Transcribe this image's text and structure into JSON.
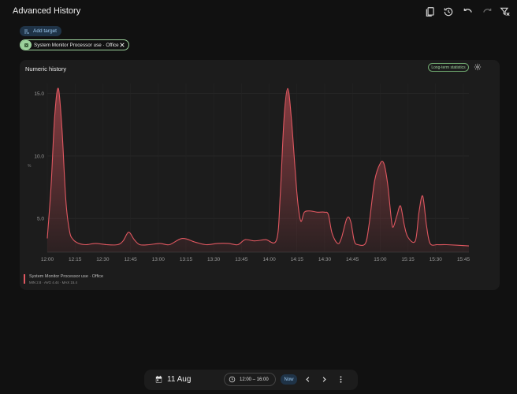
{
  "header": {
    "title": "Advanced History",
    "icons": [
      "bookmark-icon",
      "history-icon",
      "undo-icon",
      "redo-icon",
      "clear-filter-icon"
    ]
  },
  "targets": {
    "add_label": "Add target",
    "chip_label": "System Monitor Processor use · Office"
  },
  "card": {
    "title": "Numeric history",
    "long_term_label": "Long-term statistics",
    "y_unit_label": "%"
  },
  "legend": {
    "name": "System Monitor Processor use · Office",
    "stats": "MIN 2.8 · AVG 4.44 · MAX 15.4"
  },
  "bottom": {
    "date": "11 Aug",
    "range": "12:00 – 16:00",
    "now_label": "Now"
  },
  "colors": {
    "series": "#e05760",
    "accent": "#9cc9f0",
    "chip": "#9bd19b"
  },
  "chart_data": {
    "type": "area",
    "ylim": [
      2.3,
      15.8
    ],
    "yticks": [
      {
        "value": 5,
        "label": "5.0"
      },
      {
        "value": 10,
        "label": "10.0"
      },
      {
        "value": 15,
        "label": "15.0"
      }
    ],
    "xlim": [
      0,
      228
    ],
    "xticks": [
      {
        "value": 0,
        "label": "12:00"
      },
      {
        "value": 15,
        "label": "12:15"
      },
      {
        "value": 30,
        "label": "12:30"
      },
      {
        "value": 45,
        "label": "12:45"
      },
      {
        "value": 60,
        "label": "13:00"
      },
      {
        "value": 75,
        "label": "13:15"
      },
      {
        "value": 90,
        "label": "13:30"
      },
      {
        "value": 105,
        "label": "13:45"
      },
      {
        "value": 120,
        "label": "14:00"
      },
      {
        "value": 135,
        "label": "14:15"
      },
      {
        "value": 150,
        "label": "14:30"
      },
      {
        "value": 165,
        "label": "14:45"
      },
      {
        "value": 180,
        "label": "15:00"
      },
      {
        "value": 195,
        "label": "15:15"
      },
      {
        "value": 210,
        "label": "15:30"
      },
      {
        "value": 225,
        "label": "15:45"
      }
    ],
    "series": [
      {
        "name": "System Monitor Processor use · Office",
        "points": [
          [
            0,
            3.4
          ],
          [
            2,
            7.5
          ],
          [
            4,
            13.2
          ],
          [
            6,
            15.4
          ],
          [
            8,
            12.0
          ],
          [
            10,
            6.5
          ],
          [
            12,
            4.0
          ],
          [
            14,
            3.3
          ],
          [
            17,
            3.0
          ],
          [
            21,
            2.9
          ],
          [
            26,
            3.0
          ],
          [
            32,
            2.9
          ],
          [
            38,
            2.9
          ],
          [
            41,
            3.2
          ],
          [
            44,
            3.9
          ],
          [
            47,
            3.3
          ],
          [
            50,
            2.9
          ],
          [
            55,
            2.9
          ],
          [
            61,
            3.0
          ],
          [
            66,
            2.9
          ],
          [
            73,
            3.4
          ],
          [
            80,
            3.1
          ],
          [
            86,
            2.9
          ],
          [
            92,
            3.0
          ],
          [
            98,
            3.0
          ],
          [
            103,
            2.9
          ],
          [
            107,
            3.3
          ],
          [
            112,
            3.2
          ],
          [
            118,
            3.3
          ],
          [
            124,
            3.3
          ],
          [
            126,
            7.0
          ],
          [
            128,
            13.0
          ],
          [
            130,
            15.4
          ],
          [
            132,
            13.0
          ],
          [
            135,
            7.0
          ],
          [
            137,
            4.8
          ],
          [
            139,
            5.5
          ],
          [
            142,
            5.6
          ],
          [
            146,
            5.5
          ],
          [
            150,
            5.5
          ],
          [
            152,
            5.3
          ],
          [
            154,
            3.8
          ],
          [
            157,
            3.0
          ],
          [
            159,
            3.4
          ],
          [
            162,
            5.0
          ],
          [
            164,
            4.8
          ],
          [
            166,
            3.2
          ],
          [
            168,
            2.9
          ],
          [
            172,
            3.0
          ],
          [
            174,
            4.5
          ],
          [
            177,
            8.0
          ],
          [
            180,
            9.4
          ],
          [
            182,
            9.4
          ],
          [
            184,
            7.8
          ],
          [
            186,
            5.0
          ],
          [
            187,
            4.3
          ],
          [
            189,
            5.2
          ],
          [
            191,
            6.0
          ],
          [
            193,
            4.5
          ],
          [
            195,
            3.5
          ],
          [
            199,
            3.2
          ],
          [
            201,
            5.5
          ],
          [
            203,
            6.8
          ],
          [
            205,
            4.5
          ],
          [
            207,
            3.0
          ],
          [
            211,
            2.9
          ],
          [
            216,
            2.9
          ],
          [
            228,
            2.8
          ]
        ]
      }
    ]
  }
}
